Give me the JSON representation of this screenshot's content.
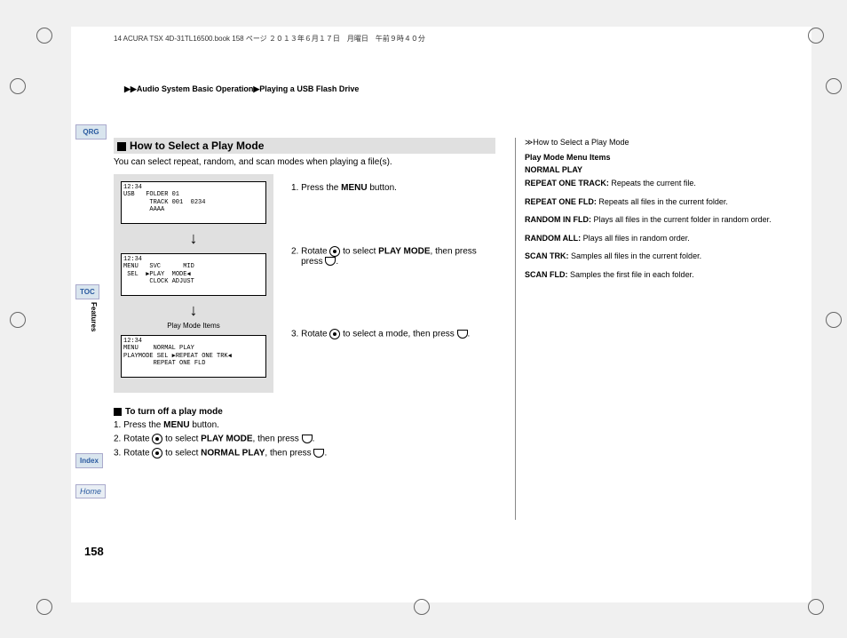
{
  "header": {
    "bookline": "14 ACURA TSX 4D-31TL16500.book  158 ページ  ２０１３年６月１７日　月曜日　午前９時４０分",
    "breadcrumb": "▶▶Audio System Basic Operation▶Playing a USB Flash Drive"
  },
  "sidebar": {
    "qrg": "QRG",
    "toc": "TOC",
    "features": "Features",
    "index": "Index",
    "home": "Home"
  },
  "section": {
    "title": "How to Select a Play Mode",
    "intro": "You can select repeat, random, and scan modes when playing a file(s).",
    "lcd1": "12:34\nUSB   FOLDER 01\n       TRACK 001  0234\n       AAAA",
    "lcd2": "12:34\nMENU   SVC      MID\n SEL  ▶PLAY  MODE◀\n       CLOCK ADJUST",
    "lcd3": "12:34\nMENU    NORMAL PLAY\nPLAYMODE SEL ▶REPEAT ONE TRK◀\n        REPEAT ONE FLD",
    "play_mode_items": "Play Mode Items",
    "step1_pre": "1. Press the ",
    "step1_b": "MENU",
    "step1_post": " button.",
    "step2_pre": "2. Rotate ",
    "step2_mid": " to select ",
    "step2_b": "PLAY MODE",
    "step2_post": ", then press ",
    "step2_end": ".",
    "step3_pre": "3. Rotate ",
    "step3_post": " to select a mode, then press ",
    "step3_end": "."
  },
  "turnoff": {
    "title": "To turn off a play mode",
    "s1_pre": "1. Press the ",
    "s1_b": "MENU",
    "s1_post": " button.",
    "s2_pre": "2. Rotate ",
    "s2_mid": " to select ",
    "s2_b": "PLAY MODE",
    "s2_post": ", then press ",
    "s2_end": ".",
    "s3_pre": "3. Rotate ",
    "s3_mid": " to select ",
    "s3_b": "NORMAL PLAY",
    "s3_post": ", then press ",
    "s3_end": "."
  },
  "right": {
    "ref": "≫How to Select a Play Mode",
    "heading": "Play Mode Menu Items",
    "normal": "NORMAL PLAY",
    "items": [
      {
        "b": "REPEAT ONE TRACK:",
        "t": " Repeats the current file."
      },
      {
        "b": "REPEAT ONE FLD:",
        "t": " Repeats all files in the current folder."
      },
      {
        "b": "RANDOM IN FLD:",
        "t": " Plays all files in the current folder in random order."
      },
      {
        "b": "RANDOM ALL:",
        "t": " Plays all files in random order."
      },
      {
        "b": "SCAN TRK:",
        "t": " Samples all files in the current folder."
      },
      {
        "b": "SCAN FLD:",
        "t": " Samples the first file in each folder."
      }
    ]
  },
  "page_num": "158",
  "colors": {
    "sidebar_bg": "#d9e5ee",
    "gray_bg": "#e0e0e0"
  }
}
